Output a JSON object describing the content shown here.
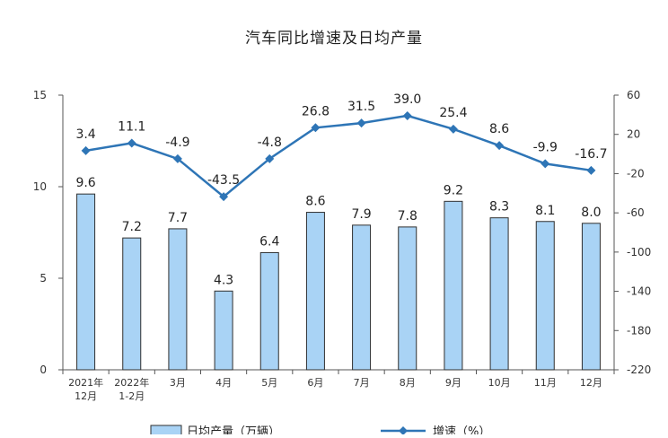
{
  "chart_data": {
    "type": "bar",
    "title": "汽车同比增速及日均产量",
    "categories": [
      [
        "2021年",
        "12月"
      ],
      [
        "2022年",
        "1-2月"
      ],
      [
        "3月"
      ],
      [
        "4月"
      ],
      [
        "5月"
      ],
      [
        "6月"
      ],
      [
        "7月"
      ],
      [
        "8月"
      ],
      [
        "9月"
      ],
      [
        "10月"
      ],
      [
        "11月"
      ],
      [
        "12月"
      ]
    ],
    "series": [
      {
        "name": "日均产量（万辆）",
        "kind": "bar",
        "axis": "left",
        "values": [
          9.6,
          7.2,
          7.7,
          4.3,
          6.4,
          8.6,
          7.9,
          7.8,
          9.2,
          8.3,
          8.1,
          8.0
        ],
        "labels": [
          "9.6",
          "7.2",
          "7.7",
          "4.3",
          "6.4",
          "8.6",
          "7.9",
          "7.8",
          "9.2",
          "8.3",
          "8.1",
          "8.0"
        ],
        "color": "#a9d3f5",
        "border": "#2f2f2f"
      },
      {
        "name": "增速（%）",
        "kind": "line",
        "axis": "right",
        "values": [
          3.4,
          11.1,
          -4.9,
          -43.5,
          -4.8,
          26.8,
          31.5,
          39.0,
          25.4,
          8.6,
          -9.9,
          -16.7
        ],
        "labels": [
          "3.4",
          "11.1",
          "-4.9",
          "-43.5",
          "-4.8",
          "26.8",
          "31.5",
          "39.0",
          "25.4",
          "8.6",
          "-9.9",
          "-16.7"
        ],
        "color": "#2e75b6"
      }
    ],
    "y_left": {
      "min": 0,
      "max": 15,
      "ticks": [
        "0",
        "5",
        "10",
        "15"
      ]
    },
    "y_right": {
      "min": -220,
      "max": 60,
      "ticks": [
        "-220",
        "-180",
        "-140",
        "-100",
        "-60",
        "-20",
        "20",
        "60"
      ]
    },
    "grid": false,
    "legend_position": "bottom"
  }
}
